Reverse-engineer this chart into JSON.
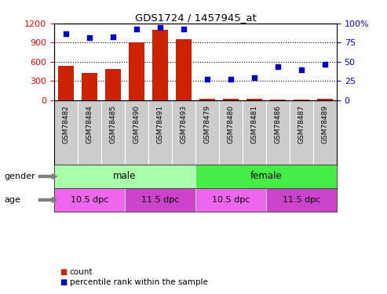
{
  "title": "GDS1724 / 1457945_at",
  "samples": [
    "GSM78482",
    "GSM78484",
    "GSM78485",
    "GSM78490",
    "GSM78491",
    "GSM78493",
    "GSM78479",
    "GSM78480",
    "GSM78481",
    "GSM78486",
    "GSM78487",
    "GSM78489"
  ],
  "counts": [
    530,
    420,
    490,
    910,
    1100,
    950,
    15,
    18,
    20,
    12,
    10,
    22
  ],
  "percentiles": [
    87,
    82,
    83,
    93,
    95,
    93,
    27,
    27,
    29,
    44,
    39,
    47
  ],
  "ylim_left": [
    0,
    1200
  ],
  "ylim_right": [
    0,
    100
  ],
  "yticks_left": [
    0,
    300,
    600,
    900,
    1200
  ],
  "yticks_right": [
    0,
    25,
    50,
    75,
    100
  ],
  "bar_color": "#cc2200",
  "dot_color": "#0000cc",
  "gender_groups": [
    {
      "label": "male",
      "color": "#aaffaa",
      "start": 0,
      "end": 6
    },
    {
      "label": "female",
      "color": "#44ee44",
      "start": 6,
      "end": 12
    }
  ],
  "age_groups": [
    {
      "label": "10.5 dpc",
      "color": "#ee66ee",
      "start": 0,
      "end": 3
    },
    {
      "label": "11.5 dpc",
      "color": "#cc44cc",
      "start": 3,
      "end": 6
    },
    {
      "label": "10.5 dpc",
      "color": "#ee66ee",
      "start": 6,
      "end": 9
    },
    {
      "label": "11.5 dpc",
      "color": "#cc44cc",
      "start": 9,
      "end": 12
    }
  ],
  "tick_bg_color": "#cccccc",
  "legend_count_color": "#cc2200",
  "legend_dot_color": "#0000cc",
  "fig_width": 4.93,
  "fig_height": 3.75,
  "fig_dpi": 100
}
